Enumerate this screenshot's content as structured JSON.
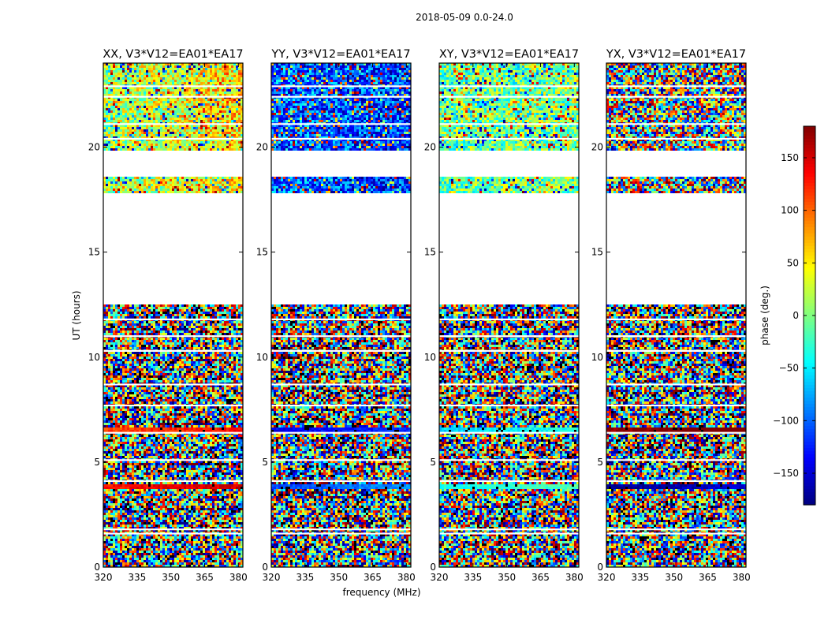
{
  "chart_data": {
    "type": "heatmap",
    "suptitle": "2018-05-09 0.0-24.0",
    "xlabel": "frequency (MHz)",
    "ylabel": "UT (hours)",
    "xlim": [
      320,
      382
    ],
    "ylim": [
      0,
      24
    ],
    "xticks": [
      320,
      335,
      350,
      365,
      380
    ],
    "yticks": [
      0,
      5,
      10,
      15,
      20
    ],
    "panels": [
      {
        "title": "XX, V3*V12=EA01*EA17",
        "pol": "XX",
        "tint_early": 10,
        "tint_late": 60,
        "band_a": 130,
        "band_b": 110
      },
      {
        "title": "YY, V3*V12=EA01*EA17",
        "pol": "YY",
        "tint_early": -100,
        "tint_late": -120,
        "band_a": -110,
        "band_b": -140
      },
      {
        "title": "XY, V3*V12=EA01*EA17",
        "pol": "XY",
        "tint_early": -10,
        "tint_late": 0,
        "band_a": -40,
        "band_b": -60
      },
      {
        "title": "YX, V3*V12=EA01*EA17",
        "pol": "YX",
        "tint_early": null,
        "tint_late": null,
        "band_a": -175,
        "band_b": 175
      }
    ],
    "colorbar": {
      "label": "phase (deg.)",
      "range": [
        -180,
        180
      ],
      "ticks": [
        -150,
        -100,
        -50,
        0,
        50,
        100,
        150
      ],
      "colormap": "jet"
    },
    "observed_ut_ranges": [
      [
        0.0,
        12.5
      ],
      [
        17.8,
        18.6
      ],
      [
        19.8,
        24.0
      ]
    ],
    "flagged_line_ut": [
      1.6,
      1.8,
      4.1,
      5.1,
      6.4,
      7.7,
      8.7,
      10.3,
      11.0,
      11.8,
      20.4,
      21.1,
      22.4,
      22.9
    ],
    "uniform_band_ut": [
      [
        3.7,
        4.0
      ],
      [
        6.4,
        6.7
      ]
    ]
  }
}
